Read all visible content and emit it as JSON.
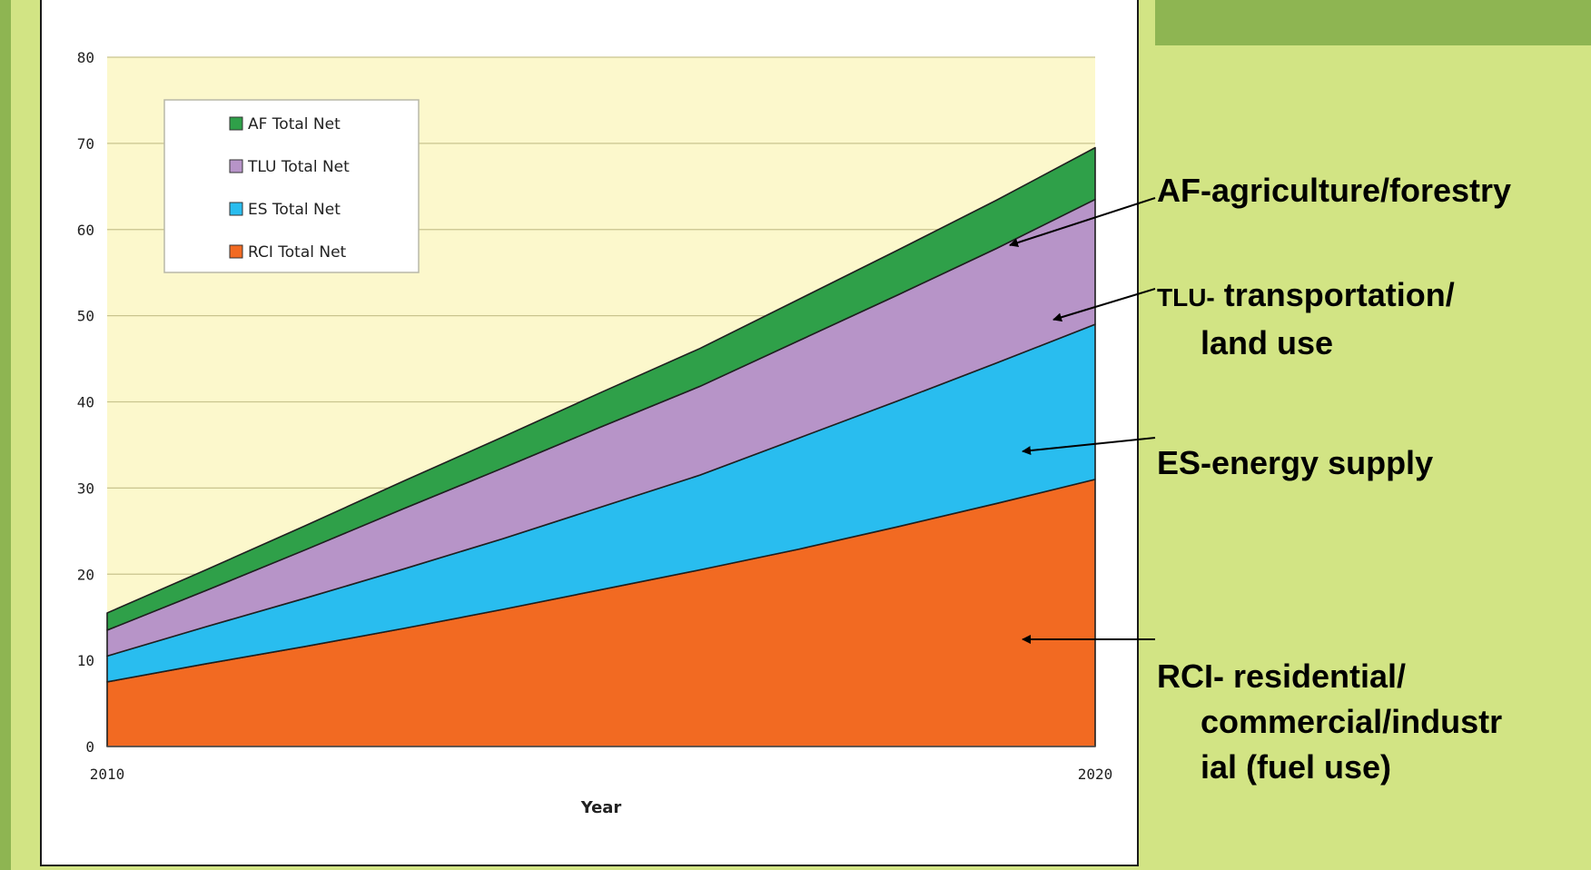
{
  "chart_data": {
    "type": "area",
    "stacked": true,
    "title": "",
    "xlabel": "Year",
    "ylabel": "",
    "x_ticks": [
      "2010",
      "2020"
    ],
    "y_ticks": [
      0,
      10,
      20,
      30,
      40,
      50,
      60,
      70,
      80
    ],
    "xlim": [
      2010,
      2020
    ],
    "ylim": [
      0,
      80
    ],
    "grid": true,
    "legend_position": "top-left",
    "x": [
      2010,
      2011,
      2012,
      2013,
      2014,
      2015,
      2016,
      2017,
      2018,
      2019,
      2020
    ],
    "series": [
      {
        "name": "RCI Total Net",
        "color": "#f26a22",
        "values": [
          7.5,
          9.6,
          11.6,
          13.7,
          15.9,
          18.2,
          20.5,
          22.9,
          25.5,
          28.2,
          31.0
        ]
      },
      {
        "name": "ES Total Net",
        "color": "#29bdef",
        "values": [
          3.0,
          4.3,
          5.6,
          6.9,
          8.2,
          9.6,
          11.0,
          12.9,
          14.6,
          16.3,
          18.0
        ]
      },
      {
        "name": "TLU Total Net",
        "color": "#b794c8",
        "values": [
          3.0,
          4.2,
          5.6,
          7.0,
          8.2,
          9.3,
          10.3,
          11.3,
          12.3,
          13.3,
          14.5
        ]
      },
      {
        "name": "AF Total Net",
        "color": "#2fa049",
        "values": [
          2.0,
          2.4,
          2.8,
          3.2,
          3.6,
          4.0,
          4.4,
          4.8,
          5.2,
          5.6,
          6.0
        ]
      }
    ],
    "plot_background": "#fcf8cc"
  },
  "annotations": {
    "af": "AF-agriculture/forestry",
    "tlu_prefix": "TLU-",
    "tlu_line1": " transportation/",
    "tlu_line2": "land use",
    "es": "ES-energy supply",
    "rci_line1": "RCI- residential/",
    "rci_line2": "commercial/industr",
    "rci_line3": "ial (fuel use)"
  }
}
